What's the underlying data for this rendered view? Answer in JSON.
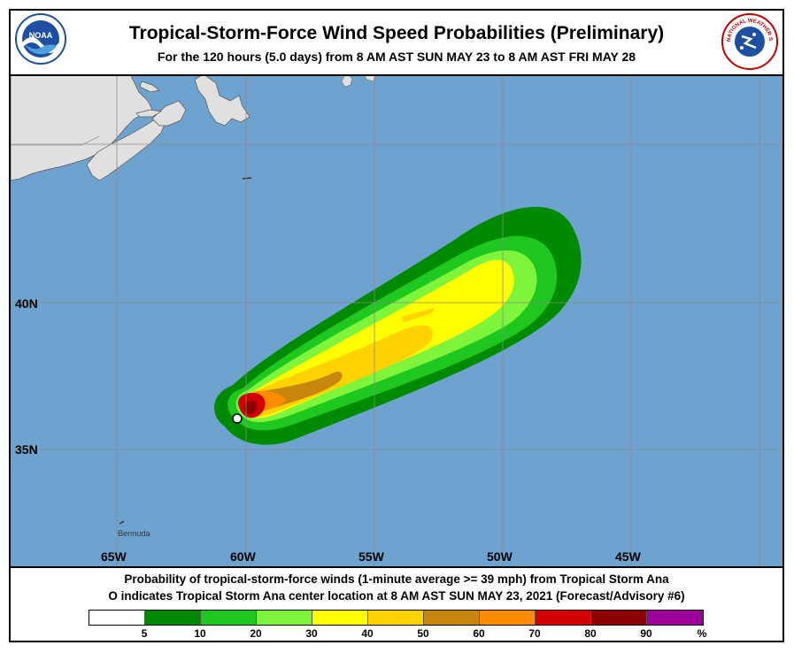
{
  "header": {
    "title": "Tropical-Storm-Force Wind Speed Probabilities (Preliminary)",
    "subtitle": "For the 120 hours (5.0 days) from 8 AM AST SUN MAY 23 to 8 AM AST FRI MAY 28",
    "left_logo": "NOAA",
    "right_logo": "NATIONAL WEATHER SERVICE"
  },
  "map": {
    "ocean_color": "#6fa3cf",
    "land_color": "#e0e0e0",
    "latitude_labels": [
      "40N",
      "35N"
    ],
    "longitude_labels": [
      "65W",
      "60W",
      "55W",
      "50W",
      "45W"
    ],
    "place_label": "Bermuda",
    "storm_center_marker": "open-circle"
  },
  "caption": {
    "line1": "Probability of tropical-storm-force winds (1-minute average >= 39 mph) from Tropical Storm Ana",
    "line2_symbol": "O",
    "line2": "indicates Tropical Storm Ana center location at 8 AM AST SUN MAY 23, 2021 (Forecast/Advisory #6)"
  },
  "legend": {
    "colors": [
      "#ffffff",
      "#008a00",
      "#1ec81e",
      "#7ef53a",
      "#ffff00",
      "#ffd200",
      "#c8870a",
      "#ff8c00",
      "#d20000",
      "#8c0000",
      "#9b009b"
    ],
    "ticks": [
      "5",
      "10",
      "20",
      "30",
      "40",
      "50",
      "60",
      "70",
      "80",
      "90",
      "%"
    ]
  }
}
